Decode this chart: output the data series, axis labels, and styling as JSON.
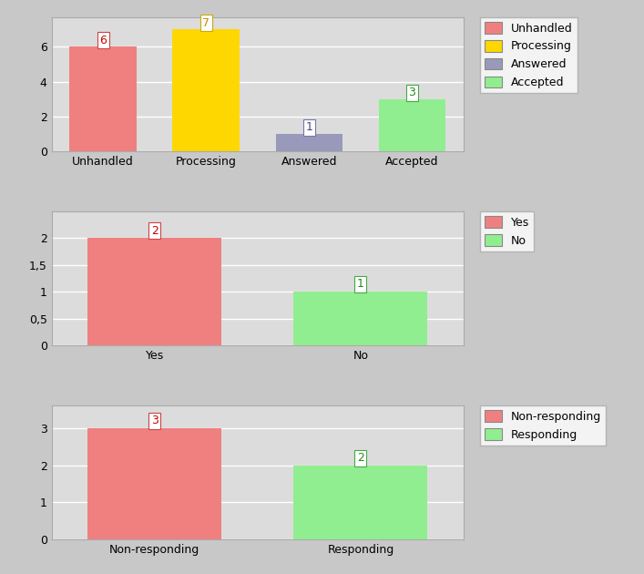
{
  "chart1": {
    "categories": [
      "Unhandled",
      "Processing",
      "Answered",
      "Accepted"
    ],
    "values": [
      6,
      7,
      1,
      3
    ],
    "colors": [
      "#F08080",
      "#FFD700",
      "#9999BB",
      "#90EE90"
    ],
    "legend_labels": [
      "Unhandled",
      "Processing",
      "Answered",
      "Accepted"
    ],
    "legend_colors": [
      "#F08080",
      "#FFD700",
      "#9999BB",
      "#90EE90"
    ],
    "annot_border_colors": [
      "#CC4444",
      "#CCAA00",
      "#7777AA",
      "#44AA44"
    ],
    "annot_text_colors": [
      "#CC0000",
      "#CC8800",
      "#444488",
      "#228822"
    ],
    "yticks": [
      0,
      2,
      4,
      6
    ],
    "ylim": [
      0,
      7.7
    ]
  },
  "chart2": {
    "categories": [
      "Yes",
      "No"
    ],
    "values": [
      2,
      1
    ],
    "colors": [
      "#F08080",
      "#90EE90"
    ],
    "legend_labels": [
      "Yes",
      "No"
    ],
    "legend_colors": [
      "#F08080",
      "#90EE90"
    ],
    "annot_border_colors": [
      "#CC4444",
      "#44AA44"
    ],
    "annot_text_colors": [
      "#CC0000",
      "#228822"
    ],
    "yticks": [
      0,
      0.5,
      1,
      1.5,
      2
    ],
    "ytick_labels": [
      "0",
      "0,5",
      "1",
      "1,5",
      "2"
    ],
    "ylim": [
      0,
      2.5
    ]
  },
  "chart3": {
    "categories": [
      "Non-responding",
      "Responding"
    ],
    "values": [
      3,
      2
    ],
    "colors": [
      "#F08080",
      "#90EE90"
    ],
    "legend_labels": [
      "Non-responding",
      "Responding"
    ],
    "legend_colors": [
      "#F08080",
      "#90EE90"
    ],
    "annot_border_colors": [
      "#CC4444",
      "#44AA44"
    ],
    "annot_text_colors": [
      "#CC0000",
      "#228822"
    ],
    "yticks": [
      0,
      1,
      2,
      3
    ],
    "ylim": [
      0,
      3.6
    ]
  },
  "bg_color": "#DCDCDC",
  "outer_bg": "#C8C8C8",
  "tick_fontsize": 9,
  "legend_fontsize": 9,
  "annotation_fontsize": 9
}
